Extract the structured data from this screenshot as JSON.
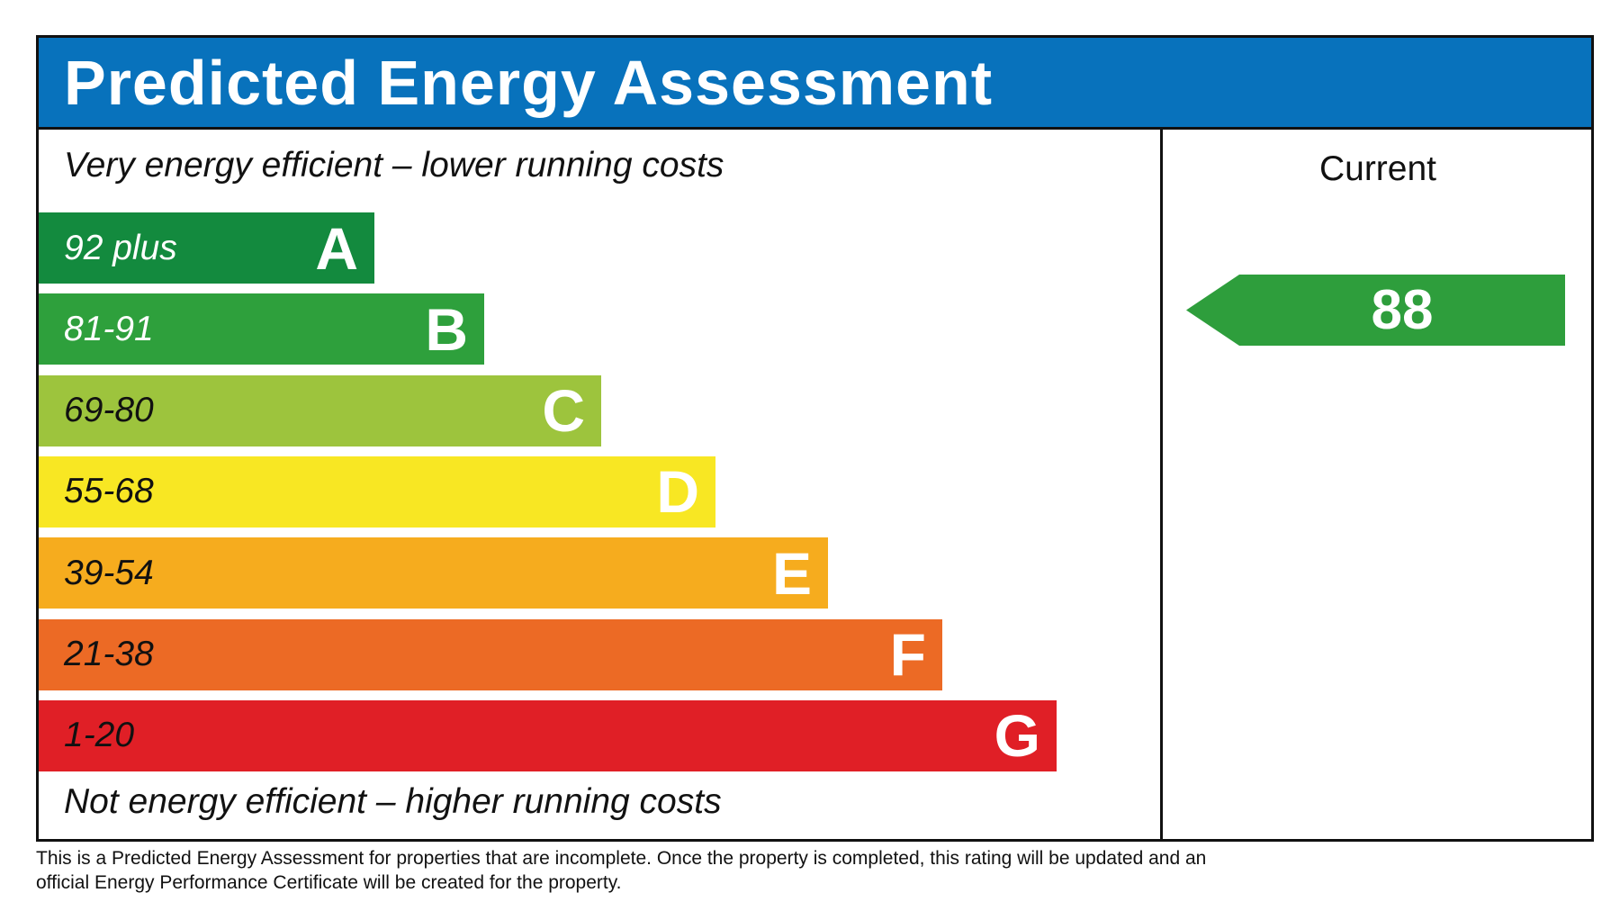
{
  "header": {
    "title": "Predicted Energy Assessment"
  },
  "captions": {
    "top": "Very energy efficient – lower running costs",
    "bottom": "Not energy efficient – higher running costs"
  },
  "current": {
    "label": "Current",
    "value": "88",
    "color": "#2e9e3c"
  },
  "bands": [
    {
      "range": "92 plus",
      "letter": "A",
      "color": "#138a3e",
      "text_color": "#ffffff"
    },
    {
      "range": "81-91",
      "letter": "B",
      "color": "#2ea03c",
      "text_color": "#ffffff"
    },
    {
      "range": "69-80",
      "letter": "C",
      "color": "#9dc43d",
      "text_color": "#111111"
    },
    {
      "range": "55-68",
      "letter": "D",
      "color": "#f8e723",
      "text_color": "#111111"
    },
    {
      "range": "39-54",
      "letter": "E",
      "color": "#f6ac1e",
      "text_color": "#111111"
    },
    {
      "range": "21-38",
      "letter": "F",
      "color": "#ec6a25",
      "text_color": "#111111"
    },
    {
      "range": "1-20",
      "letter": "G",
      "color": "#e01f26",
      "text_color": "#111111"
    }
  ],
  "footer": {
    "line1": "This is a Predicted Energy Assessment for properties that are incomplete. Once the property is completed, this rating will be updated and an",
    "line2": "official Energy Performance Certificate will be created for the property."
  },
  "chart_data": {
    "type": "bar",
    "title": "Predicted Energy Assessment",
    "categories": [
      "A",
      "B",
      "C",
      "D",
      "E",
      "F",
      "G"
    ],
    "ranges": [
      "92 plus",
      "81-91",
      "69-80",
      "55-68",
      "39-54",
      "21-38",
      "1-20"
    ],
    "current_rating": 88,
    "current_band": "B"
  }
}
